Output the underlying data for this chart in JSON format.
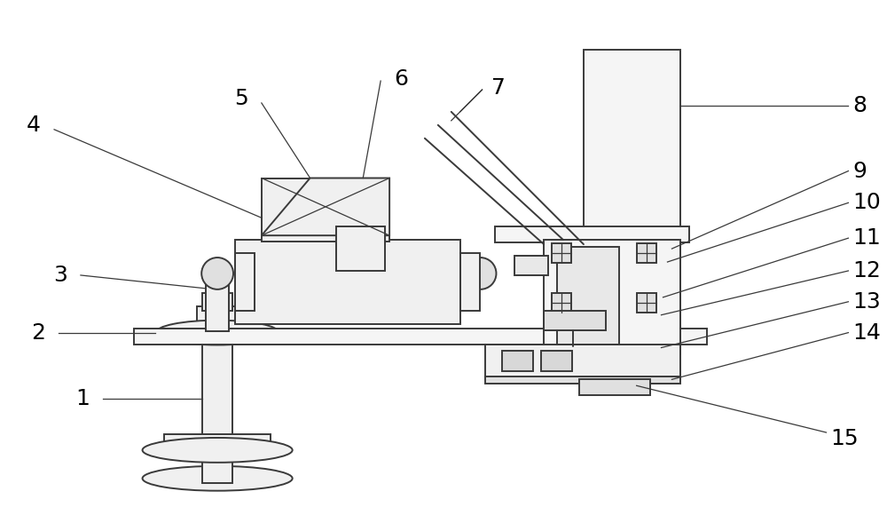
{
  "bg_color": "#ffffff",
  "line_color": "#3a3a3a",
  "lw": 1.4,
  "tlw": 0.9,
  "fs": 18,
  "figsize": [
    10.0,
    5.98
  ],
  "dpi": 100
}
